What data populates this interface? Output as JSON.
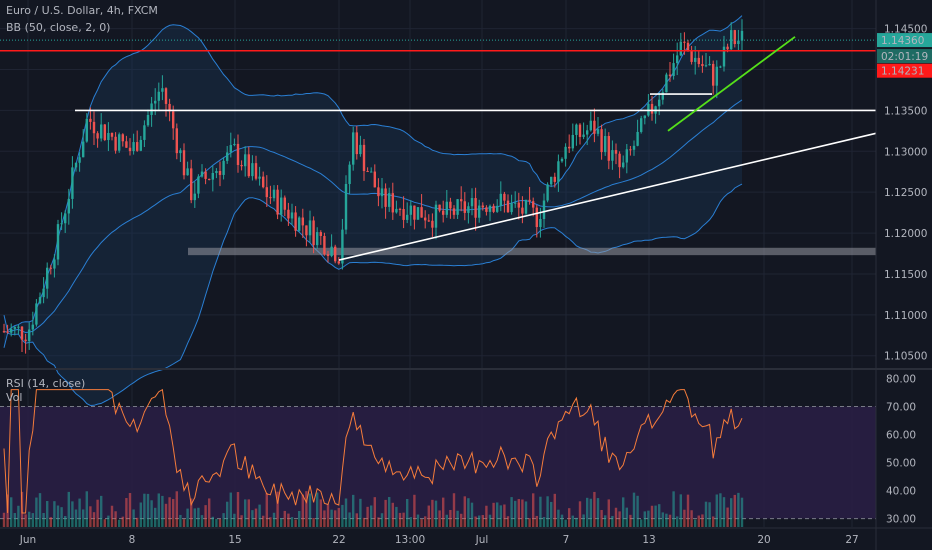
{
  "header": {
    "symbol_line": "Euro / U.S. Dollar, 4h, FXCM",
    "indicator_line": "BB (50, close, 2, 0)"
  },
  "panes": {
    "rsi_label": "RSI (14, close)",
    "vol_label": "Vol"
  },
  "price_tags": {
    "last_price": "1.14360",
    "countdown": "02:01:19",
    "red_level": "1.14231"
  },
  "colors": {
    "background": "#131722",
    "grid": "#1f2433",
    "up_candle": "#26a69a",
    "down_candle": "#ef5350",
    "bollinger": "#2a7fd4",
    "rsi_line": "#f57c3b",
    "rsi_band_fill": "#2a1e45",
    "resistance_line": "#ff1a1a",
    "trendline_green": "#55e01a",
    "trendline_white": "#ffffff",
    "support_zone": "#9598a1"
  },
  "chart_data": {
    "type": "candlestick",
    "title": "Euro / U.S. Dollar, 4h, FXCM",
    "ylim": [
      1.1035,
      1.1485
    ],
    "x_tick_labels": [
      "Jun",
      "8",
      "15",
      "22",
      "13:00",
      "Jul",
      "7",
      "13",
      "20",
      "27"
    ],
    "price_axis_labels": [
      "1.14500",
      "1.13500",
      "1.13000",
      "1.12500",
      "1.12000",
      "1.11500",
      "1.11000",
      "1.10500"
    ],
    "rsi_axis_labels": [
      "80.00",
      "70.00",
      "60.00",
      "50.00",
      "40.00",
      "30.00"
    ],
    "rsi_ylim": [
      27,
      83
    ],
    "rsi_band": [
      30,
      70
    ],
    "levels": {
      "horizontal_resistance_red": 1.1423,
      "horizontal_white": 1.135,
      "last_price": 1.1436,
      "support_zone": [
        1.1173,
        1.1182
      ],
      "short_white_level": 1.137
    },
    "drawn_trendlines": [
      {
        "name": "rising support (white)",
        "from": [
          "Jun 22",
          1.1167
        ],
        "to": [
          "Jul 30",
          1.1322
        ]
      },
      {
        "name": "rising support (green)",
        "from": [
          "Jul 15",
          1.1325
        ],
        "to": [
          "Jul 22",
          1.144
        ]
      }
    ],
    "close_path": [
      {
        "x": "Jun 1",
        "close": 1.108
      },
      {
        "x": "Jun 3",
        "close": 1.1195
      },
      {
        "x": "Jun 5",
        "close": 1.134
      },
      {
        "x": "Jun 8",
        "close": 1.13
      },
      {
        "x": "Jun 10",
        "close": 1.138
      },
      {
        "x": "Jun 12",
        "close": 1.125
      },
      {
        "x": "Jun 15",
        "close": 1.13
      },
      {
        "x": "Jun 17",
        "close": 1.125
      },
      {
        "x": "Jun 19",
        "close": 1.122
      },
      {
        "x": "Jun 22",
        "close": 1.1175
      },
      {
        "x": "Jun 23",
        "close": 1.132
      },
      {
        "x": "Jun 25",
        "close": 1.124
      },
      {
        "x": "Jun 29",
        "close": 1.122
      },
      {
        "x": "Jul 1",
        "close": 1.123
      },
      {
        "x": "Jul 3",
        "close": 1.124
      },
      {
        "x": "Jul 6",
        "close": 1.122
      },
      {
        "x": "Jul 8",
        "close": 1.131
      },
      {
        "x": "Jul 10",
        "close": 1.133
      },
      {
        "x": "Jul 12",
        "close": 1.1275
      },
      {
        "x": "Jul 14",
        "close": 1.1345
      },
      {
        "x": "Jul 16",
        "close": 1.143
      },
      {
        "x": "Jul 18",
        "close": 1.139
      },
      {
        "x": "Jul 19",
        "close": 1.1436
      }
    ]
  }
}
